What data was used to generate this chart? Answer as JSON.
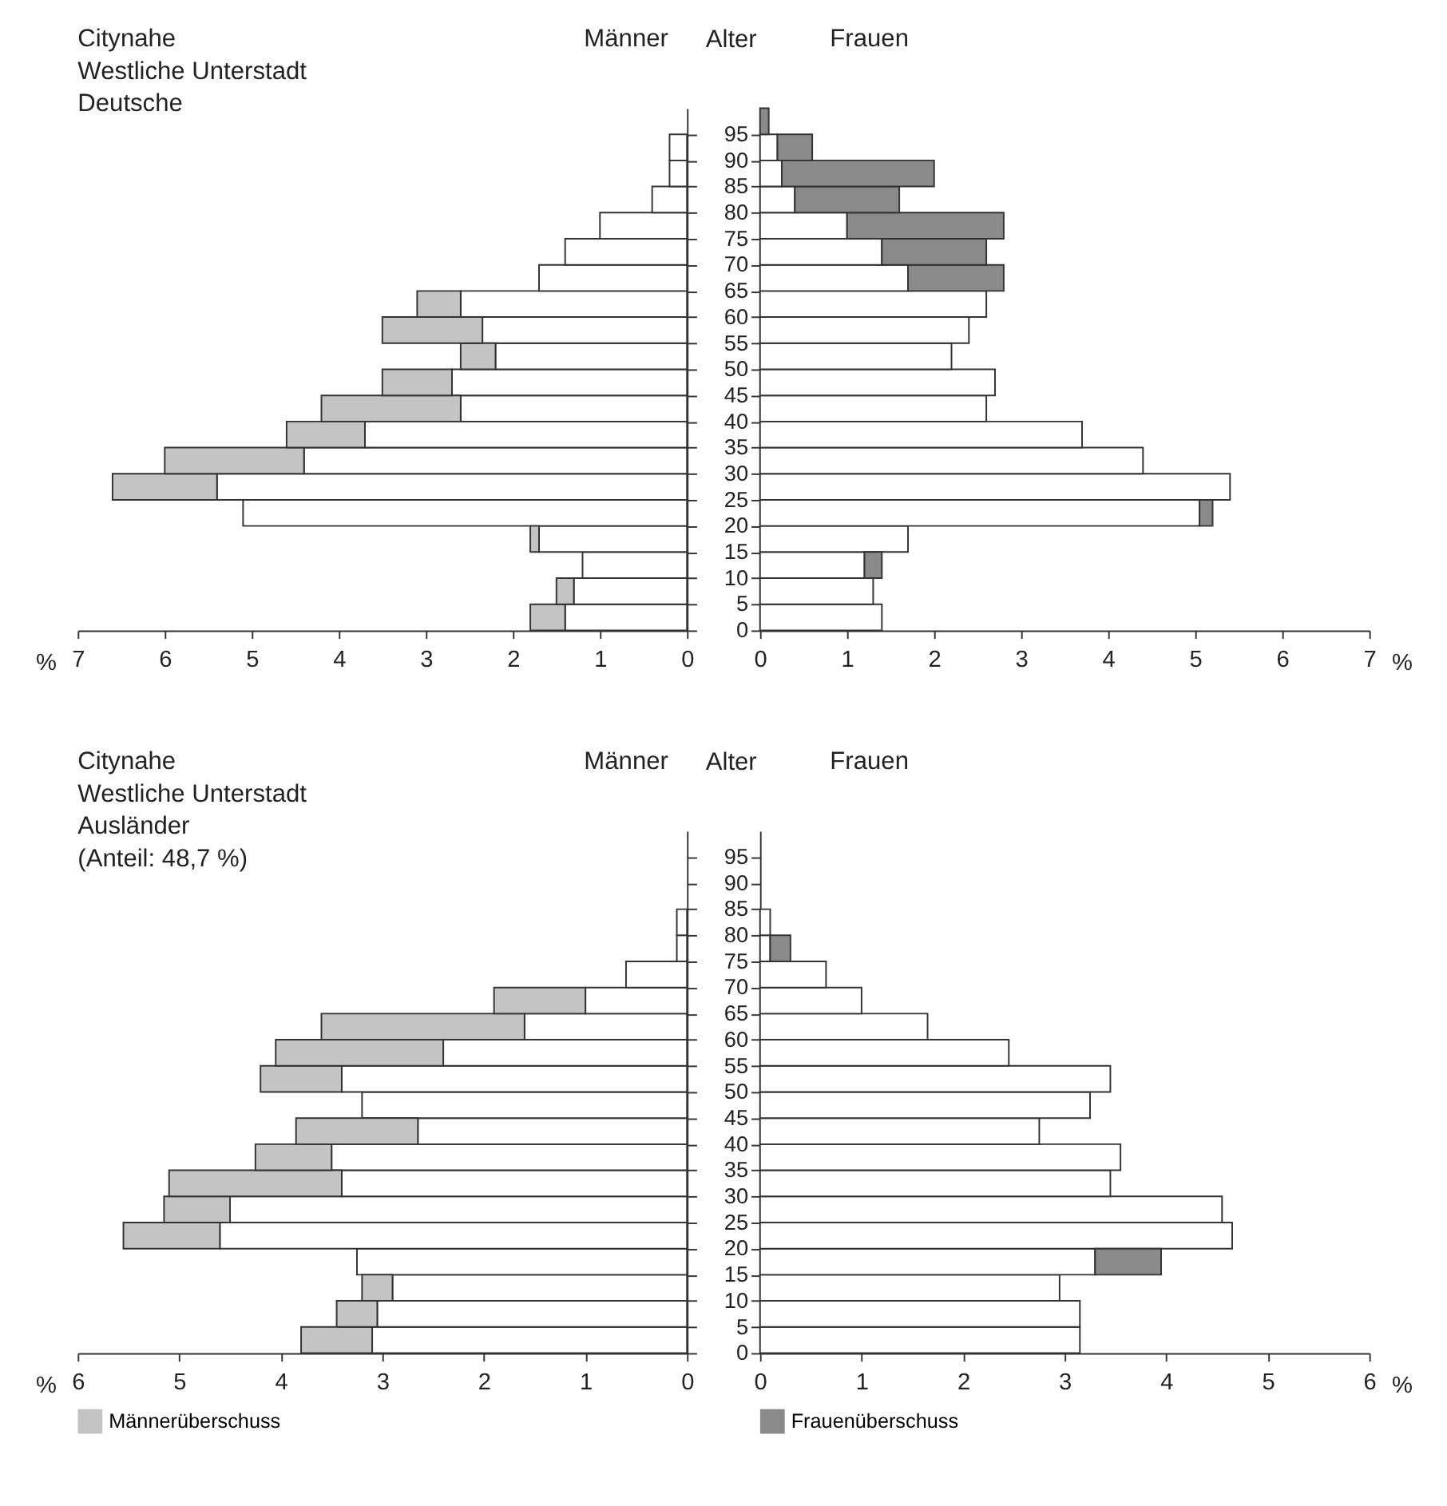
{
  "chart_data": [
    {
      "type": "bar",
      "orientation": "horizontal",
      "stacked": true,
      "title": "Citynahe\nWestliche Unterstadt\nDeutsche",
      "subtitle": "Männer",
      "tick_labels": "x",
      "legend": false,
      "x": [
        2.5,
        7.5,
        12.5,
        17.5,
        22.5,
        27.5,
        32.5,
        37.5,
        42.5,
        47.5,
        52.5,
        57.5,
        62.5,
        67.5,
        72.5,
        77.5,
        82.5,
        87.5,
        92.5
      ],
      "xlim": [
        7,
        0
      ],
      "xticks": [
        7,
        6,
        5,
        4,
        3,
        2,
        1,
        0
      ],
      "xlabel": "%",
      "ylim": [
        0,
        100
      ],
      "yticks": [
        0,
        5,
        10,
        15,
        20,
        25,
        30,
        35,
        40,
        45,
        50,
        55,
        60,
        65,
        70,
        75,
        80,
        85,
        90,
        95
      ],
      "series": [
        {
          "color": "#ffffff",
          "values": [
            1.4,
            1.3,
            1.2,
            1.7,
            5.1,
            5.4,
            4.4,
            3.7,
            2.6,
            2.7,
            2.2,
            2.35,
            2.6,
            1.7,
            1.4,
            1.0,
            0.4,
            0.2,
            0.2
          ]
        },
        {
          "color": "#c4c4c4",
          "values": [
            0.4,
            0.2,
            null,
            0.1,
            null,
            1.2,
            1.6,
            0.9,
            1.6,
            0.8,
            0.4,
            1.15,
            0.5,
            null,
            null,
            null,
            null,
            null,
            null
          ]
        }
      ]
    },
    {
      "type": "bar",
      "orientation": "horizontal",
      "stacked": true,
      "title": "Frauen",
      "ylabel": "Alter",
      "legend": false,
      "x": [
        2.5,
        7.5,
        12.5,
        17.5,
        22.5,
        27.5,
        32.5,
        37.5,
        42.5,
        47.5,
        52.5,
        57.5,
        62.5,
        67.5,
        72.5,
        77.5,
        82.5,
        87.5,
        92.5,
        97.5
      ],
      "xlim": [
        0,
        7
      ],
      "xticks": [
        0,
        1,
        2,
        3,
        4,
        5,
        6,
        7
      ],
      "xlabel": "%",
      "ylim": [
        0,
        100
      ],
      "yticks": [
        0,
        5,
        10,
        15,
        20,
        25,
        30,
        35,
        40,
        45,
        50,
        55,
        60,
        65,
        70,
        75,
        80,
        85,
        90,
        95
      ],
      "series": [
        {
          "color": "#ffffff",
          "values": [
            1.4,
            1.3,
            1.2,
            1.7,
            5.05,
            5.4,
            4.4,
            3.7,
            2.6,
            2.7,
            2.2,
            2.4,
            2.6,
            1.7,
            1.4,
            1.0,
            0.4,
            0.25,
            0.2,
            null
          ]
        },
        {
          "color": "#8a8a8a",
          "values": [
            null,
            null,
            0.2,
            null,
            0.15,
            null,
            null,
            null,
            null,
            null,
            null,
            null,
            null,
            1.1,
            1.2,
            1.8,
            1.2,
            1.75,
            0.4,
            0.1
          ]
        }
      ]
    },
    {
      "type": "bar",
      "orientation": "horizontal",
      "stacked": true,
      "title": "Citynahe\nWestliche Unterstadt\nAusländer\n(Anteil: 48,7 %)",
      "subtitle": "Männer",
      "tick_labels": "x",
      "legend": "bottom",
      "x": [
        2.5,
        7.5,
        12.5,
        17.5,
        22.5,
        27.5,
        32.5,
        37.5,
        42.5,
        47.5,
        52.5,
        57.5,
        62.5,
        67.5,
        72.5,
        77.5,
        82.5
      ],
      "xlim": [
        6,
        0
      ],
      "xticks": [
        6,
        5,
        4,
        3,
        2,
        1,
        0
      ],
      "xlabel": "%",
      "ylim": [
        0,
        100
      ],
      "yticks": [
        0,
        5,
        10,
        15,
        20,
        25,
        30,
        35,
        40,
        45,
        50,
        55,
        60,
        65,
        70,
        75,
        80,
        85,
        90,
        95
      ],
      "series": [
        {
          "color": "#ffffff",
          "values": [
            3.1,
            3.05,
            2.9,
            3.25,
            4.6,
            4.5,
            3.4,
            3.5,
            2.65,
            3.2,
            3.4,
            2.4,
            1.6,
            1.0,
            0.6,
            0.1,
            0.1
          ]
        },
        {
          "name": "Männerüberschuss",
          "color": "#c4c4c4",
          "values": [
            0.7,
            0.4,
            0.3,
            null,
            0.95,
            0.65,
            1.7,
            0.75,
            1.2,
            null,
            0.8,
            1.65,
            2.0,
            0.9,
            null,
            null,
            null
          ]
        }
      ]
    },
    {
      "type": "bar",
      "orientation": "horizontal",
      "stacked": true,
      "title": "Frauen",
      "ylabel": "Alter",
      "legend": "bottom",
      "x": [
        2.5,
        7.5,
        12.5,
        17.5,
        22.5,
        27.5,
        32.5,
        37.5,
        42.5,
        47.5,
        52.5,
        57.5,
        62.5,
        67.5,
        72.5,
        77.5,
        82.5
      ],
      "xlim": [
        0,
        6
      ],
      "xticks": [
        0,
        1,
        2,
        3,
        4,
        5,
        6
      ],
      "xlabel": "%",
      "ylim": [
        0,
        100
      ],
      "yticks": [
        0,
        5,
        10,
        15,
        20,
        25,
        30,
        35,
        40,
        45,
        50,
        55,
        60,
        65,
        70,
        75,
        80,
        85,
        90,
        95
      ],
      "series": [
        {
          "color": "#ffffff",
          "values": [
            3.15,
            3.15,
            2.95,
            3.3,
            4.65,
            4.55,
            3.45,
            3.55,
            2.75,
            3.25,
            3.45,
            2.45,
            1.65,
            1.0,
            0.65,
            0.1,
            0.1
          ]
        },
        {
          "name": "Frauenüberschuss",
          "color": "#8a8a8a",
          "values": [
            null,
            null,
            null,
            0.65,
            null,
            null,
            null,
            null,
            null,
            null,
            null,
            null,
            null,
            null,
            null,
            0.2,
            null
          ]
        }
      ]
    }
  ]
}
